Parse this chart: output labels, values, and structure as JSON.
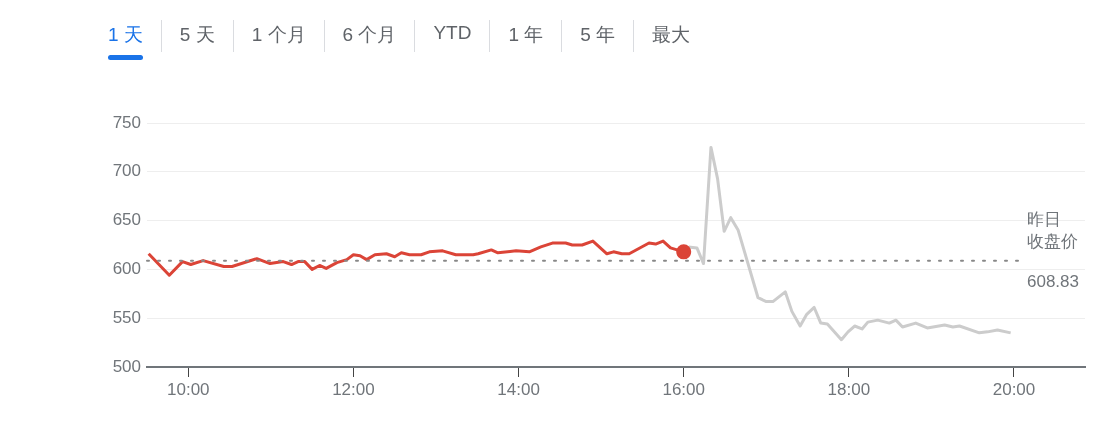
{
  "chart_data": {
    "type": "line",
    "annotations": [
      "1 天",
      "5 天",
      "1 个月",
      "6 个月",
      "YTD",
      "1 年",
      "5 年",
      "最大",
      "608.83"
    ],
    "xlim": [
      9.5,
      20.86
    ],
    "xticks": [
      {
        "value": 10,
        "label": "10:00"
      },
      {
        "value": 12,
        "label": "12:00"
      },
      {
        "value": 14,
        "label": "14:00"
      },
      {
        "value": 16,
        "label": "16:00"
      },
      {
        "value": 18,
        "label": "18:00"
      },
      {
        "value": 20,
        "label": "20:00"
      }
    ],
    "ylim": [
      500,
      750
    ],
    "yticks": [
      500,
      550,
      600,
      650,
      700,
      750
    ],
    "grid": "y",
    "legend": false,
    "line_style": "solid",
    "ref_lines": [
      {
        "axis": "y",
        "value": 608.83,
        "label": "昨日收盘价",
        "color": "#888888",
        "line_style": "dotted"
      }
    ],
    "series": [
      {
        "color": "#db4437",
        "x": [
          9.52,
          9.77,
          9.93,
          10.03,
          10.18,
          10.43,
          10.53,
          10.83,
          10.99,
          11.15,
          11.25,
          11.33,
          11.41,
          11.5,
          11.59,
          11.67,
          11.8,
          11.92,
          12.0,
          12.08,
          12.16,
          12.26,
          12.4,
          12.5,
          12.58,
          12.68,
          12.82,
          12.92,
          13.08,
          13.24,
          13.45,
          13.51,
          13.67,
          13.75,
          13.97,
          14.13,
          14.27,
          14.41,
          14.57,
          14.65,
          14.77,
          14.9,
          15.07,
          15.15,
          15.25,
          15.34,
          15.58,
          15.66,
          15.75,
          15.84,
          16.0
        ],
        "values": [
          616,
          594,
          608,
          605,
          609,
          603,
          603,
          611,
          606,
          608,
          605,
          608,
          608,
          600,
          604,
          601,
          607,
          610,
          615,
          614,
          610,
          615,
          616,
          613,
          617,
          615,
          615,
          618,
          619,
          615,
          615,
          616,
          620,
          617,
          619,
          618,
          623,
          627,
          627,
          625,
          625,
          629,
          616,
          618,
          616,
          616,
          627,
          626,
          629,
          622,
          618
        ]
      },
      {
        "color": "#cccccc",
        "x": [
          16.06,
          16.16,
          16.24,
          16.33,
          16.41,
          16.49,
          16.57,
          16.66,
          16.9,
          17.0,
          17.08,
          17.23,
          17.31,
          17.41,
          17.49,
          17.58,
          17.66,
          17.74,
          17.91,
          17.99,
          18.07,
          18.16,
          18.23,
          18.35,
          18.49,
          18.57,
          18.65,
          18.81,
          18.95,
          19.16,
          19.26,
          19.34,
          19.58,
          19.68,
          19.8,
          19.96
        ],
        "values": [
          623,
          622,
          606,
          725,
          693,
          639,
          653,
          640,
          571,
          567,
          567,
          577,
          557,
          542,
          554,
          561,
          545,
          544,
          528,
          536,
          542,
          539,
          546,
          548,
          545,
          548,
          541,
          545,
          540,
          543,
          541,
          542,
          535,
          536,
          538,
          535
        ]
      }
    ]
  }
}
